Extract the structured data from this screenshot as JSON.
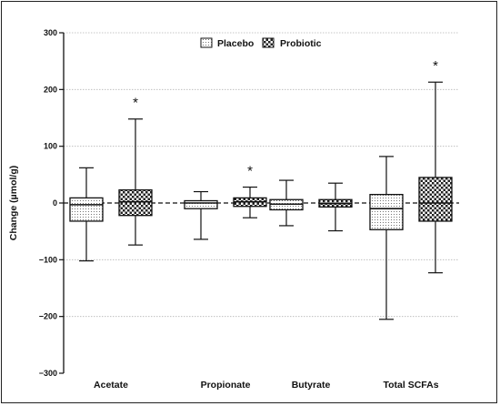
{
  "chart_data": {
    "type": "box",
    "ylabel": "Change (µmol/g)",
    "ylim": [
      -300,
      300
    ],
    "yticks": [
      300,
      200,
      100,
      0,
      -100,
      -200,
      -300
    ],
    "ytick_labels": [
      "300",
      "200",
      "100",
      "0",
      "−100",
      "−200",
      "−300"
    ],
    "grid": "horizontal dotted",
    "reference_line": 0,
    "legend_position": "top-center",
    "categories": [
      "Acetate",
      "Propionate",
      "Butyrate",
      "Total SCFAs"
    ],
    "series": [
      {
        "name": "Placebo",
        "pattern": "dotted",
        "boxes": [
          {
            "min": -102,
            "q1": -32,
            "median": -3,
            "q3": 9,
            "max": 62
          },
          {
            "min": -64,
            "q1": -10,
            "median": 0,
            "q3": 4,
            "max": 20
          },
          {
            "min": -40,
            "q1": -12,
            "median": -2,
            "q3": 6,
            "max": 40
          },
          {
            "min": -205,
            "q1": -47,
            "median": -10,
            "q3": 15,
            "max": 82
          }
        ],
        "significance": [
          "",
          "",
          "",
          ""
        ]
      },
      {
        "name": "Probiotic",
        "pattern": "checkered",
        "boxes": [
          {
            "min": -74,
            "q1": -22,
            "median": 2,
            "q3": 23,
            "max": 148
          },
          {
            "min": -26,
            "q1": -6,
            "median": 2,
            "q3": 9,
            "max": 28
          },
          {
            "min": -49,
            "q1": -7,
            "median": -1,
            "q3": 6,
            "max": 35
          },
          {
            "min": -123,
            "q1": -32,
            "median": 0,
            "q3": 45,
            "max": 213
          }
        ],
        "significance": [
          "*",
          "*",
          "",
          "*"
        ]
      }
    ]
  }
}
